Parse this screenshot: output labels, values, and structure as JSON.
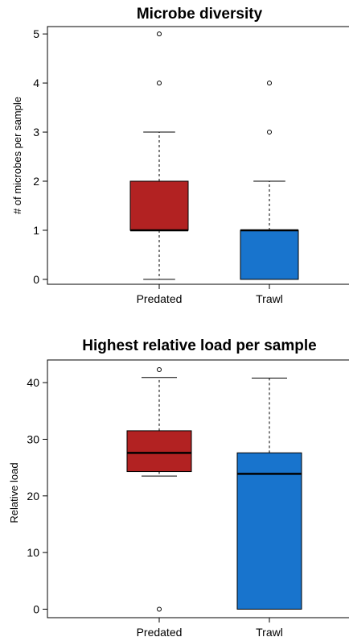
{
  "chart_data": [
    {
      "type": "box",
      "title": "Microbe diversity",
      "xlabel": "",
      "ylabel": "# of microbes per sample",
      "ylim": [
        -0.1,
        5.15
      ],
      "yticks": [
        0,
        1,
        2,
        3,
        4,
        5
      ],
      "categories": [
        "Predated",
        "Trawl"
      ],
      "boxes": [
        {
          "category": "Predated",
          "color": "#b22222",
          "min": 0,
          "q1": 1,
          "median": 1,
          "q3": 2,
          "max": 3,
          "outliers": [
            4,
            5
          ]
        },
        {
          "category": "Trawl",
          "color": "#1874cd",
          "min": 0,
          "q1": 0,
          "median": 1,
          "q3": 1,
          "max": 2,
          "outliers": [
            3,
            4
          ]
        }
      ],
      "grid": false
    },
    {
      "type": "box",
      "title": "Highest relative load per sample",
      "xlabel": "",
      "ylabel": "Relative load",
      "ylim": [
        -1.5,
        44
      ],
      "yticks": [
        0,
        10,
        20,
        30,
        40
      ],
      "categories": [
        "Predated",
        "Trawl"
      ],
      "boxes": [
        {
          "category": "Predated",
          "color": "#b22222",
          "min": 23.5,
          "q1": 24.3,
          "median": 27.6,
          "q3": 31.5,
          "max": 40.9,
          "outliers": [
            0,
            42.3
          ]
        },
        {
          "category": "Trawl",
          "color": "#1874cd",
          "min": 0,
          "q1": 0,
          "median": 23.9,
          "q3": 27.6,
          "max": 40.8,
          "outliers": []
        }
      ],
      "grid": false
    }
  ]
}
